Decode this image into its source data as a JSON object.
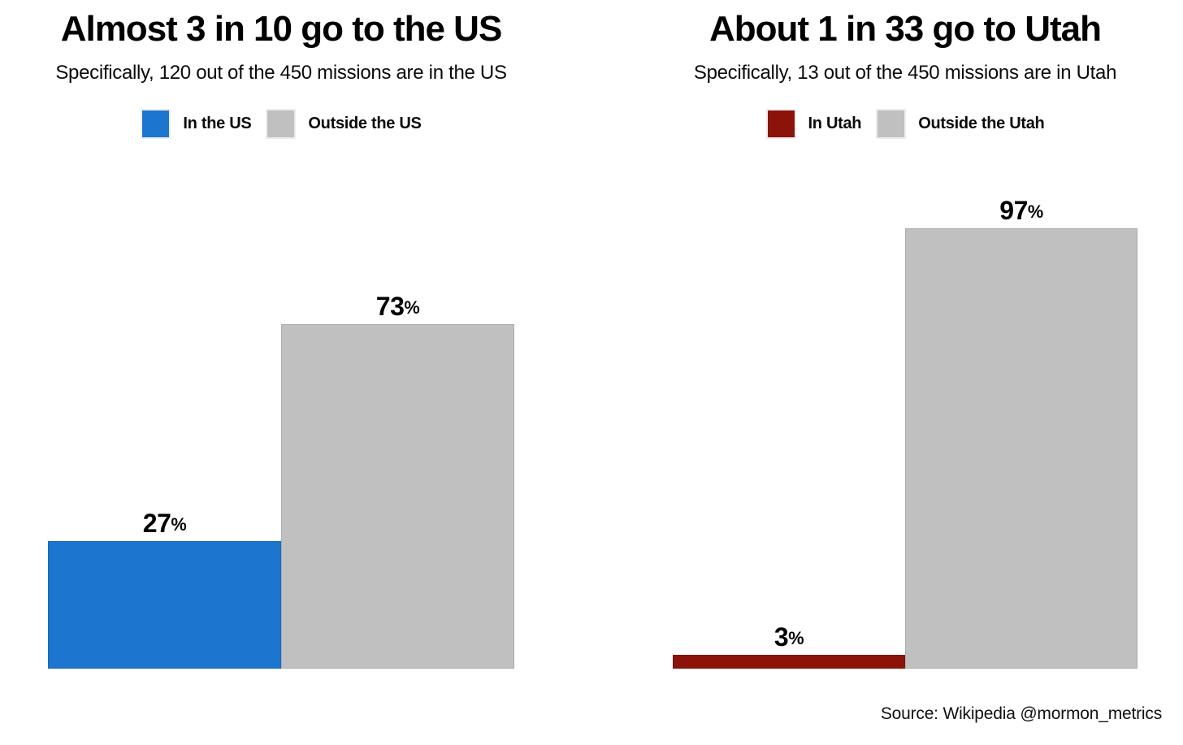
{
  "page": {
    "background": "#ffffff",
    "source_note": "Source: Wikipedia @mormon_metrics"
  },
  "chart_data": [
    {
      "type": "bar",
      "title": "Almost 3 in 10 go to the US",
      "subtitle": "Specifically, 120 out of the 450 missions are in the US",
      "categories": [
        "In the US",
        "Outside the US"
      ],
      "values": [
        27,
        73
      ],
      "value_labels": [
        "27",
        "73"
      ],
      "unit": "%",
      "colors": [
        "#1c75ce",
        "#c0c0c0"
      ],
      "legend": [
        {
          "label": "In the US",
          "color": "#1c75ce"
        },
        {
          "label": "Outside the US",
          "color": "#c0c0c0"
        }
      ],
      "ylim": [
        0,
        100
      ],
      "grid": false,
      "axes_hidden": true,
      "legend_position": "top"
    },
    {
      "type": "bar",
      "title": "About 1 in 33 go to Utah",
      "subtitle": "Specifically, 13 out of the 450 missions are in Utah",
      "categories": [
        "In Utah",
        "Outside the Utah"
      ],
      "values": [
        3,
        97
      ],
      "value_labels": [
        "3",
        "97"
      ],
      "unit": "%",
      "colors": [
        "#8b1309",
        "#c0c0c0"
      ],
      "legend": [
        {
          "label": "In Utah",
          "color": "#8b1309"
        },
        {
          "label": "Outside the Utah",
          "color": "#c0c0c0"
        }
      ],
      "ylim": [
        0,
        100
      ],
      "grid": false,
      "axes_hidden": true,
      "legend_position": "top"
    }
  ]
}
